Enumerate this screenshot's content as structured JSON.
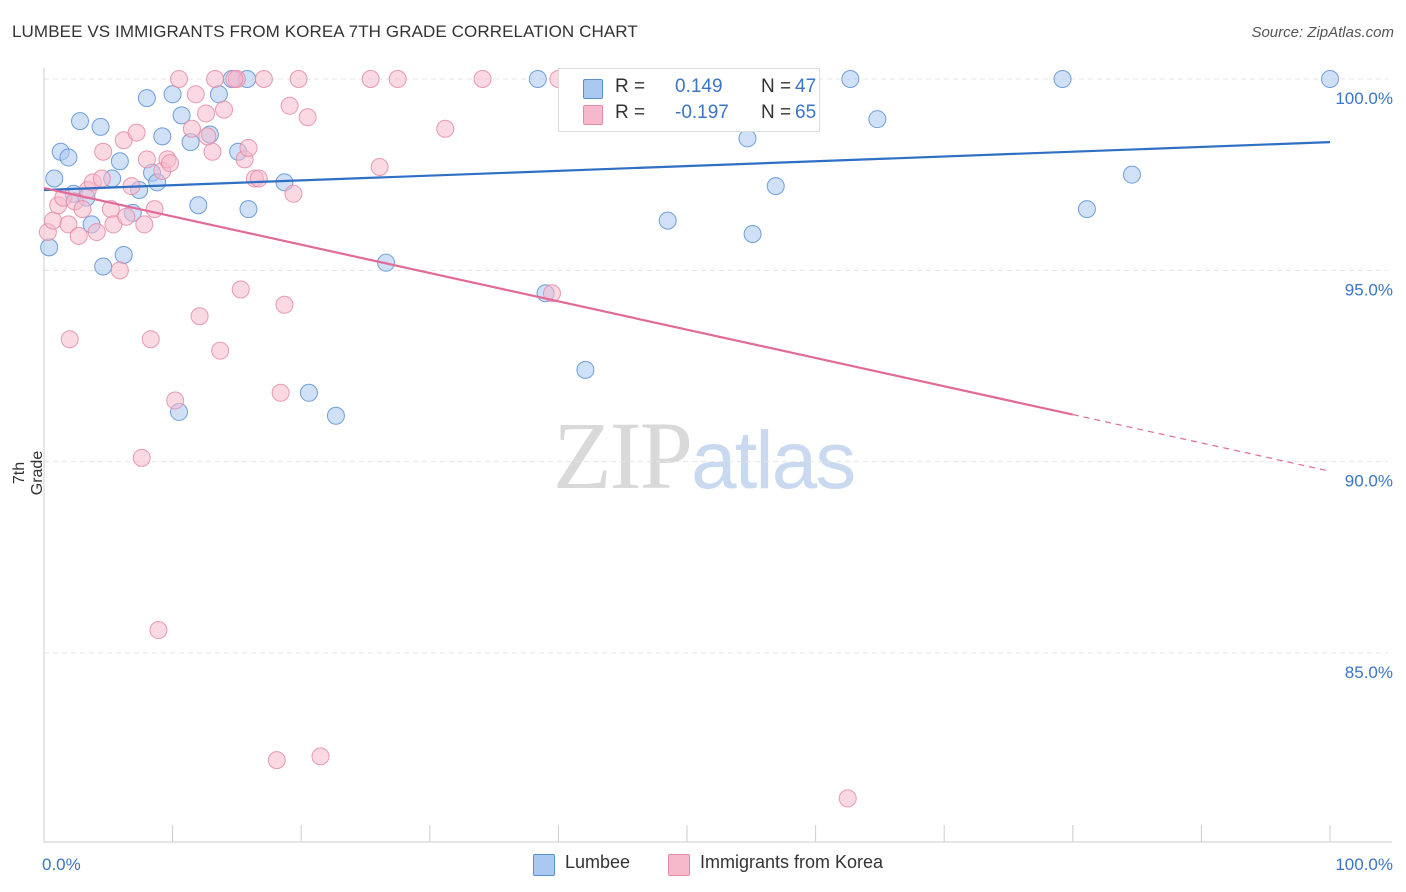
{
  "header": {
    "title": "LUMBEE VS IMMIGRANTS FROM KOREA 7TH GRADE CORRELATION CHART",
    "source": "Source: ZipAtlas.com"
  },
  "watermark": {
    "zip": "ZIP",
    "atlas": "atlas"
  },
  "stats": [
    {
      "r_label": "R =",
      "r_value": "0.149",
      "n_label": "N =",
      "n_value": "47",
      "color": "#a9c9f1"
    },
    {
      "r_label": "R =",
      "r_value": "-0.197",
      "n_label": "N =",
      "n_value": "65",
      "color": "#f6b9cc"
    }
  ],
  "legend": {
    "series1": "Lumbee",
    "series2": "Immigrants from Korea"
  },
  "colors": {
    "blue_fill": "#a9c9f1",
    "blue_stroke": "#5a8fd6",
    "blue_line": "#2f6fc4",
    "pink_fill": "#f6b9cc",
    "pink_stroke": "#e58aa8",
    "pink_line": "#e06b98",
    "tick_label": "#3a76c4",
    "grid": "#e5e5e5"
  },
  "chart_data": {
    "type": "scatter",
    "title": "LUMBEE VS IMMIGRANTS FROM KOREA 7TH GRADE CORRELATION CHART",
    "xlabel": "",
    "ylabel": "7th Grade",
    "xlim": [
      0,
      100
    ],
    "ylim": [
      80.5,
      101
    ],
    "x_tick_labels": [
      {
        "value": 0,
        "label": "0.0%"
      },
      {
        "value": 100,
        "label": "100.0%"
      }
    ],
    "y_tick_labels": [
      {
        "value": 85,
        "label": "85.0%"
      },
      {
        "value": 90,
        "label": "90.0%"
      },
      {
        "value": 95,
        "label": "95.0%"
      },
      {
        "value": 100,
        "label": "100.0%"
      }
    ],
    "x_minor_ticks": [
      0,
      10,
      20,
      30,
      40,
      50,
      60,
      70,
      80,
      90,
      100
    ],
    "grid": true,
    "legend_position": "bottom-center",
    "series": [
      {
        "name": "Lumbee",
        "color": "#a9c9f1",
        "trend": {
          "x": [
            0,
            100
          ],
          "y": [
            97.1,
            98.35
          ],
          "dashed_from": null
        },
        "points": [
          {
            "x": 0.4,
            "y": 95.6
          },
          {
            "x": 0.8,
            "y": 97.4
          },
          {
            "x": 1.3,
            "y": 98.1
          },
          {
            "x": 1.9,
            "y": 97.95
          },
          {
            "x": 2.3,
            "y": 97.0
          },
          {
            "x": 2.8,
            "y": 98.9
          },
          {
            "x": 3.3,
            "y": 96.9
          },
          {
            "x": 3.7,
            "y": 96.2
          },
          {
            "x": 4.4,
            "y": 98.75
          },
          {
            "x": 4.6,
            "y": 95.1
          },
          {
            "x": 5.3,
            "y": 97.4
          },
          {
            "x": 5.9,
            "y": 97.85
          },
          {
            "x": 6.2,
            "y": 95.4
          },
          {
            "x": 6.9,
            "y": 96.5
          },
          {
            "x": 7.4,
            "y": 97.1
          },
          {
            "x": 8.0,
            "y": 99.5
          },
          {
            "x": 8.4,
            "y": 97.55
          },
          {
            "x": 8.8,
            "y": 97.3
          },
          {
            "x": 9.2,
            "y": 98.5
          },
          {
            "x": 10.0,
            "y": 99.6
          },
          {
            "x": 10.5,
            "y": 91.3
          },
          {
            "x": 10.7,
            "y": 99.05
          },
          {
            "x": 11.4,
            "y": 98.35
          },
          {
            "x": 12.0,
            "y": 96.7
          },
          {
            "x": 12.9,
            "y": 98.55
          },
          {
            "x": 13.6,
            "y": 99.6
          },
          {
            "x": 14.6,
            "y": 100.0
          },
          {
            "x": 15.8,
            "y": 100.0
          },
          {
            "x": 15.9,
            "y": 96.6
          },
          {
            "x": 15.1,
            "y": 98.1
          },
          {
            "x": 18.7,
            "y": 97.3
          },
          {
            "x": 20.6,
            "y": 91.8
          },
          {
            "x": 22.7,
            "y": 91.2
          },
          {
            "x": 26.6,
            "y": 95.2
          },
          {
            "x": 38.4,
            "y": 100.0
          },
          {
            "x": 39.0,
            "y": 94.4
          },
          {
            "x": 42.1,
            "y": 92.4
          },
          {
            "x": 48.5,
            "y": 96.3
          },
          {
            "x": 54.7,
            "y": 98.45
          },
          {
            "x": 55.1,
            "y": 95.95
          },
          {
            "x": 56.9,
            "y": 97.2
          },
          {
            "x": 62.7,
            "y": 100.0
          },
          {
            "x": 64.8,
            "y": 98.95
          },
          {
            "x": 79.2,
            "y": 100.0
          },
          {
            "x": 81.1,
            "y": 96.6
          },
          {
            "x": 84.6,
            "y": 97.5
          },
          {
            "x": 100.0,
            "y": 100.0
          }
        ]
      },
      {
        "name": "Immigrants from Korea",
        "color": "#f6b9cc",
        "trend": {
          "x": [
            0,
            100
          ],
          "y": [
            97.15,
            89.75
          ],
          "dashed_from": 80
        },
        "points": [
          {
            "x": 0.3,
            "y": 96.0
          },
          {
            "x": 0.7,
            "y": 96.3
          },
          {
            "x": 1.1,
            "y": 96.7
          },
          {
            "x": 1.5,
            "y": 96.9
          },
          {
            "x": 1.9,
            "y": 96.2
          },
          {
            "x": 2.0,
            "y": 93.2
          },
          {
            "x": 2.4,
            "y": 96.8
          },
          {
            "x": 2.7,
            "y": 95.9
          },
          {
            "x": 3.0,
            "y": 96.6
          },
          {
            "x": 3.4,
            "y": 97.1
          },
          {
            "x": 3.8,
            "y": 97.3
          },
          {
            "x": 4.1,
            "y": 96.0
          },
          {
            "x": 4.5,
            "y": 97.4
          },
          {
            "x": 4.6,
            "y": 98.1
          },
          {
            "x": 5.2,
            "y": 96.6
          },
          {
            "x": 5.4,
            "y": 96.2
          },
          {
            "x": 5.9,
            "y": 95.0
          },
          {
            "x": 6.2,
            "y": 98.4
          },
          {
            "x": 6.4,
            "y": 96.4
          },
          {
            "x": 6.8,
            "y": 97.2
          },
          {
            "x": 7.2,
            "y": 98.6
          },
          {
            "x": 7.6,
            "y": 90.1
          },
          {
            "x": 7.8,
            "y": 96.2
          },
          {
            "x": 8.0,
            "y": 97.9
          },
          {
            "x": 8.3,
            "y": 93.2
          },
          {
            "x": 8.6,
            "y": 96.6
          },
          {
            "x": 8.9,
            "y": 85.6
          },
          {
            "x": 9.2,
            "y": 97.6
          },
          {
            "x": 9.6,
            "y": 97.9
          },
          {
            "x": 9.8,
            "y": 97.8
          },
          {
            "x": 10.2,
            "y": 91.6
          },
          {
            "x": 10.5,
            "y": 100.0
          },
          {
            "x": 11.5,
            "y": 98.7
          },
          {
            "x": 11.8,
            "y": 99.6
          },
          {
            "x": 12.1,
            "y": 93.8
          },
          {
            "x": 12.6,
            "y": 99.1
          },
          {
            "x": 13.1,
            "y": 98.1
          },
          {
            "x": 13.3,
            "y": 100.0
          },
          {
            "x": 13.7,
            "y": 92.9
          },
          {
            "x": 14.0,
            "y": 99.2
          },
          {
            "x": 15.0,
            "y": 100.0
          },
          {
            "x": 15.3,
            "y": 94.5
          },
          {
            "x": 15.6,
            "y": 97.9
          },
          {
            "x": 15.9,
            "y": 98.2
          },
          {
            "x": 16.4,
            "y": 97.4
          },
          {
            "x": 16.7,
            "y": 97.4
          },
          {
            "x": 17.1,
            "y": 100.0
          },
          {
            "x": 18.1,
            "y": 82.2
          },
          {
            "x": 18.4,
            "y": 91.8
          },
          {
            "x": 18.7,
            "y": 94.1
          },
          {
            "x": 19.1,
            "y": 99.3
          },
          {
            "x": 19.4,
            "y": 97.0
          },
          {
            "x": 19.8,
            "y": 100.0
          },
          {
            "x": 20.5,
            "y": 99.0
          },
          {
            "x": 21.5,
            "y": 82.3
          },
          {
            "x": 25.4,
            "y": 100.0
          },
          {
            "x": 26.1,
            "y": 97.7
          },
          {
            "x": 27.5,
            "y": 100.0
          },
          {
            "x": 31.2,
            "y": 98.7
          },
          {
            "x": 34.1,
            "y": 100.0
          },
          {
            "x": 39.5,
            "y": 94.4
          },
          {
            "x": 40.0,
            "y": 100.0
          },
          {
            "x": 62.5,
            "y": 81.2
          },
          {
            "x": 14.8,
            "y": 100.0
          },
          {
            "x": 12.7,
            "y": 98.5
          }
        ]
      }
    ]
  }
}
